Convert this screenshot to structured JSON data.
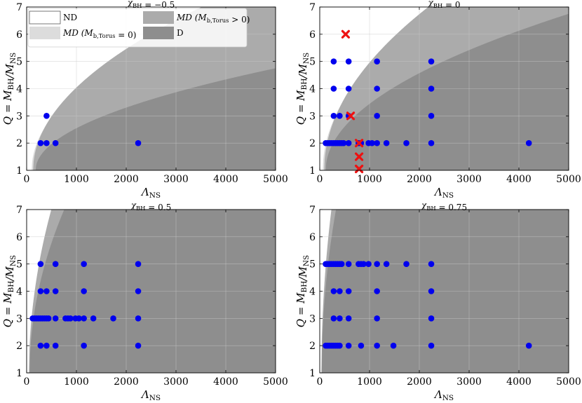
{
  "figure": {
    "x_label": "Λ_NS",
    "y_label": "Q = M_BH/M_NS",
    "colors": {
      "ND": "#ffffff",
      "MD0": "#dcdcdc",
      "MD1": "#ababab",
      "D": "#8e8e8e",
      "point": "#0000ee",
      "cross": "#ee1111",
      "grid": "#c8c8c8"
    }
  },
  "legend": {
    "entries": [
      {
        "key": "ND",
        "label": "ND"
      },
      {
        "key": "MD0",
        "label": "MD (M_b,Torus = 0)"
      },
      {
        "key": "MD1",
        "label": "MD (M_b,Torus > 0)"
      },
      {
        "key": "D",
        "label": "D"
      }
    ]
  },
  "chart_data": [
    {
      "type": "scatter",
      "title": "χ_BH = −0.5",
      "xlabel": "Λ_NS",
      "ylabel": "Q = M_BH/M_NS",
      "xlim": [
        0,
        5000
      ],
      "ylim": [
        1,
        7
      ],
      "xticks": [
        "0",
        "1000",
        "2000",
        "3000",
        "4000",
        "5000"
      ],
      "yticks": [
        "1",
        "2",
        "3",
        "4",
        "5",
        "6",
        "7"
      ],
      "regions": {
        "boundary_md0_lambda0": 100,
        "boundary_md0_q_at_5000": 7.8,
        "boundary_md1_lambda0": 130,
        "boundary_md1_q_at_5000": 8.2,
        "boundary_d_lambda0": 180,
        "boundary_d_q_at_5000": 4.75
      },
      "points": [
        {
          "lambda": 280,
          "q": 2
        },
        {
          "lambda": 400,
          "q": 2
        },
        {
          "lambda": 400,
          "q": 3
        },
        {
          "lambda": 580,
          "q": 2
        },
        {
          "lambda": 2240,
          "q": 2
        }
      ],
      "crosses": []
    },
    {
      "type": "scatter",
      "title": "χ_BH = 0",
      "xlabel": "Λ_NS",
      "ylabel": "Q = M_BH/M_NS",
      "xlim": [
        0,
        5000
      ],
      "ylim": [
        1,
        7
      ],
      "xticks": [
        "0",
        "1000",
        "2000",
        "3000",
        "4000",
        "5000"
      ],
      "yticks": [
        "1",
        "2",
        "3",
        "4",
        "5",
        "6",
        "7"
      ],
      "regions": {
        "boundary_md0_lambda0": 60,
        "boundary_md0_q_at_5000": 9.8,
        "boundary_md1_lambda0": 90,
        "boundary_md1_q_at_5000": 10.2,
        "boundary_d_lambda0": 120,
        "boundary_d_q_at_5000": 6.75
      },
      "points": [
        {
          "lambda": 120,
          "q": 2
        },
        {
          "lambda": 160,
          "q": 2
        },
        {
          "lambda": 200,
          "q": 2
        },
        {
          "lambda": 240,
          "q": 2
        },
        {
          "lambda": 280,
          "q": 2
        },
        {
          "lambda": 320,
          "q": 2
        },
        {
          "lambda": 360,
          "q": 2
        },
        {
          "lambda": 400,
          "q": 2
        },
        {
          "lambda": 440,
          "q": 2
        },
        {
          "lambda": 480,
          "q": 2
        },
        {
          "lambda": 580,
          "q": 2
        },
        {
          "lambda": 780,
          "q": 2
        },
        {
          "lambda": 830,
          "q": 2
        },
        {
          "lambda": 980,
          "q": 2
        },
        {
          "lambda": 1050,
          "q": 2
        },
        {
          "lambda": 1150,
          "q": 2
        },
        {
          "lambda": 1340,
          "q": 2
        },
        {
          "lambda": 1740,
          "q": 2
        },
        {
          "lambda": 2240,
          "q": 2
        },
        {
          "lambda": 4200,
          "q": 2
        },
        {
          "lambda": 280,
          "q": 3
        },
        {
          "lambda": 400,
          "q": 3
        },
        {
          "lambda": 580,
          "q": 3
        },
        {
          "lambda": 1150,
          "q": 3
        },
        {
          "lambda": 2240,
          "q": 3
        },
        {
          "lambda": 280,
          "q": 4
        },
        {
          "lambda": 580,
          "q": 4
        },
        {
          "lambda": 1150,
          "q": 4
        },
        {
          "lambda": 2240,
          "q": 4
        },
        {
          "lambda": 280,
          "q": 5
        },
        {
          "lambda": 580,
          "q": 5
        },
        {
          "lambda": 1150,
          "q": 5
        },
        {
          "lambda": 2240,
          "q": 5
        }
      ],
      "crosses": [
        {
          "lambda": 520,
          "q": 6
        },
        {
          "lambda": 620,
          "q": 3
        },
        {
          "lambda": 790,
          "q": 2
        },
        {
          "lambda": 790,
          "q": 1.5
        },
        {
          "lambda": 790,
          "q": 1.05
        }
      ]
    },
    {
      "type": "scatter",
      "title": "χ_BH = 0.5",
      "xlabel": "Λ_NS",
      "ylabel": "Q = M_BH/M_NS",
      "xlim": [
        0,
        5000
      ],
      "ylim": [
        1,
        7
      ],
      "xticks": [
        "0",
        "1000",
        "2000",
        "3000",
        "4000",
        "5000"
      ],
      "yticks": [
        "1",
        "2",
        "3",
        "4",
        "5",
        "6",
        "7"
      ],
      "regions": {
        "boundary_md0_lambda0": 40,
        "boundary_md0_q_at_5000": 20,
        "boundary_md1_lambda0": 50,
        "boundary_md1_q_at_5000": 21,
        "boundary_d_lambda0": 60,
        "boundary_d_q_at_5000": 17
      },
      "points": [
        {
          "lambda": 120,
          "q": 3
        },
        {
          "lambda": 160,
          "q": 3
        },
        {
          "lambda": 200,
          "q": 3
        },
        {
          "lambda": 240,
          "q": 3
        },
        {
          "lambda": 280,
          "q": 3
        },
        {
          "lambda": 320,
          "q": 3
        },
        {
          "lambda": 360,
          "q": 3
        },
        {
          "lambda": 400,
          "q": 3
        },
        {
          "lambda": 440,
          "q": 3
        },
        {
          "lambda": 580,
          "q": 3
        },
        {
          "lambda": 780,
          "q": 3
        },
        {
          "lambda": 830,
          "q": 3
        },
        {
          "lambda": 880,
          "q": 3
        },
        {
          "lambda": 980,
          "q": 3
        },
        {
          "lambda": 1050,
          "q": 3
        },
        {
          "lambda": 1150,
          "q": 3
        },
        {
          "lambda": 1340,
          "q": 3
        },
        {
          "lambda": 1740,
          "q": 3
        },
        {
          "lambda": 2240,
          "q": 3
        },
        {
          "lambda": 280,
          "q": 2
        },
        {
          "lambda": 400,
          "q": 2
        },
        {
          "lambda": 580,
          "q": 2
        },
        {
          "lambda": 1150,
          "q": 2
        },
        {
          "lambda": 2240,
          "q": 2
        },
        {
          "lambda": 280,
          "q": 4
        },
        {
          "lambda": 400,
          "q": 4
        },
        {
          "lambda": 580,
          "q": 4
        },
        {
          "lambda": 1150,
          "q": 4
        },
        {
          "lambda": 2240,
          "q": 4
        },
        {
          "lambda": 280,
          "q": 5
        },
        {
          "lambda": 580,
          "q": 5
        },
        {
          "lambda": 1150,
          "q": 5
        },
        {
          "lambda": 2240,
          "q": 5
        }
      ],
      "crosses": []
    },
    {
      "type": "scatter",
      "title": "χ_BH = 0.75",
      "xlabel": "Λ_NS",
      "ylabel": "Q = M_BH/M_NS",
      "xlim": [
        0,
        5000
      ],
      "ylim": [
        1,
        7
      ],
      "xticks": [
        "0",
        "1000",
        "2000",
        "3000",
        "4000",
        "5000"
      ],
      "yticks": [
        "1",
        "2",
        "3",
        "4",
        "5",
        "6",
        "7"
      ],
      "regions": {
        "boundary_md0_lambda0": 30,
        "boundary_md0_q_at_5000": 30,
        "boundary_md1_lambda0": 35,
        "boundary_md1_q_at_5000": 31,
        "boundary_d_lambda0": 40,
        "boundary_d_q_at_5000": 26
      },
      "points": [
        {
          "lambda": 120,
          "q": 5
        },
        {
          "lambda": 160,
          "q": 5
        },
        {
          "lambda": 200,
          "q": 5
        },
        {
          "lambda": 240,
          "q": 5
        },
        {
          "lambda": 280,
          "q": 5
        },
        {
          "lambda": 320,
          "q": 5
        },
        {
          "lambda": 360,
          "q": 5
        },
        {
          "lambda": 400,
          "q": 5
        },
        {
          "lambda": 440,
          "q": 5
        },
        {
          "lambda": 580,
          "q": 5
        },
        {
          "lambda": 780,
          "q": 5
        },
        {
          "lambda": 830,
          "q": 5
        },
        {
          "lambda": 880,
          "q": 5
        },
        {
          "lambda": 980,
          "q": 5
        },
        {
          "lambda": 1150,
          "q": 5
        },
        {
          "lambda": 1340,
          "q": 5
        },
        {
          "lambda": 1740,
          "q": 5
        },
        {
          "lambda": 2240,
          "q": 5
        },
        {
          "lambda": 120,
          "q": 2
        },
        {
          "lambda": 160,
          "q": 2
        },
        {
          "lambda": 200,
          "q": 2
        },
        {
          "lambda": 240,
          "q": 2
        },
        {
          "lambda": 280,
          "q": 2
        },
        {
          "lambda": 320,
          "q": 2
        },
        {
          "lambda": 360,
          "q": 2
        },
        {
          "lambda": 400,
          "q": 2
        },
        {
          "lambda": 580,
          "q": 2
        },
        {
          "lambda": 830,
          "q": 2
        },
        {
          "lambda": 1150,
          "q": 2
        },
        {
          "lambda": 1480,
          "q": 2
        },
        {
          "lambda": 2240,
          "q": 2
        },
        {
          "lambda": 4200,
          "q": 2
        },
        {
          "lambda": 280,
          "q": 3
        },
        {
          "lambda": 400,
          "q": 3
        },
        {
          "lambda": 580,
          "q": 3
        },
        {
          "lambda": 1150,
          "q": 3
        },
        {
          "lambda": 2240,
          "q": 3
        },
        {
          "lambda": 280,
          "q": 4
        },
        {
          "lambda": 400,
          "q": 4
        },
        {
          "lambda": 580,
          "q": 4
        },
        {
          "lambda": 1150,
          "q": 4
        },
        {
          "lambda": 2240,
          "q": 4
        }
      ],
      "crosses": []
    }
  ]
}
